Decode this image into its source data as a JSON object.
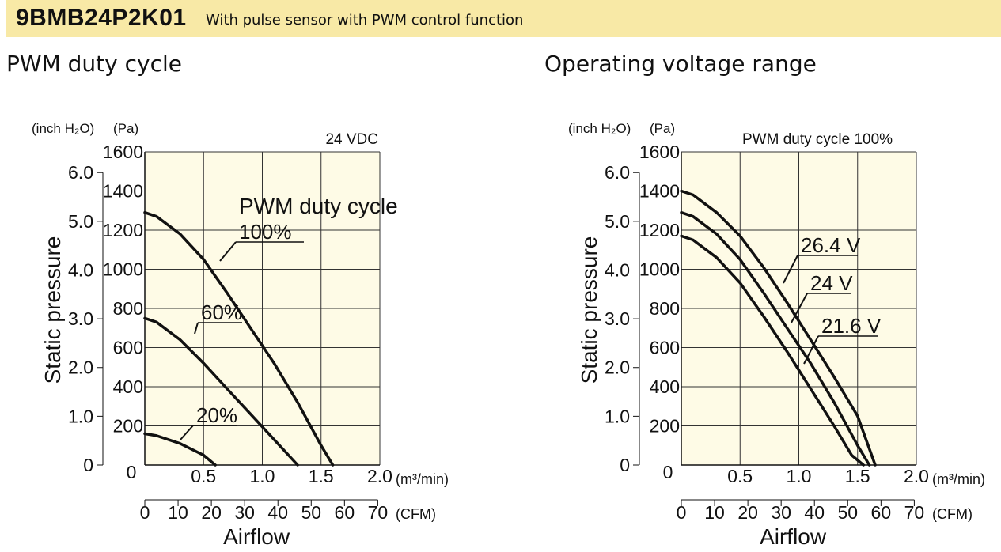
{
  "header": {
    "model": "9BMB24P2K01",
    "description": "With pulse sensor with PWM control function",
    "background": "#f8e9a6"
  },
  "sections": {
    "left_title": "PWM duty cycle",
    "right_title": "Operating voltage range"
  },
  "colors": {
    "plot_bg": "#fefbe6",
    "grid": "#333333",
    "curve": "#111111"
  },
  "chart_data": [
    {
      "type": "line",
      "title": "",
      "condition": "24 VDC",
      "legend_title": "PWM duty cycle",
      "xlabel": "Airflow",
      "ylabel": "Static pressure",
      "x_unit_primary": "(m³/min)",
      "x_unit_secondary": "(CFM)",
      "y_unit_primary": "(Pa)",
      "y_unit_secondary": "(inch H₂O)",
      "xlim": [
        0,
        2.0
      ],
      "ylim": [
        0,
        1600
      ],
      "x_ticks": [
        "0.5",
        "1.0",
        "1.5",
        "2.0"
      ],
      "x_origin_label": "0",
      "y_ticks": [
        "200",
        "400",
        "600",
        "800",
        "1000",
        "1200",
        "1400",
        "1600"
      ],
      "y_origin_label": "0",
      "cfm_ticks": [
        "0",
        "10",
        "20",
        "30",
        "40",
        "50",
        "60",
        "70"
      ],
      "inch_ticks": [
        "0",
        "1.0",
        "2.0",
        "3.0",
        "4.0",
        "5.0",
        "6.0"
      ],
      "grid": true,
      "series": [
        {
          "name": "100%",
          "x": [
            0,
            0.1,
            0.3,
            0.5,
            0.7,
            0.9,
            1.1,
            1.3,
            1.5,
            1.6
          ],
          "y": [
            1290,
            1270,
            1180,
            1050,
            880,
            700,
            520,
            320,
            100,
            0
          ]
        },
        {
          "name": "60%",
          "x": [
            0,
            0.1,
            0.3,
            0.5,
            0.7,
            0.9,
            1.1,
            1.3
          ],
          "y": [
            750,
            730,
            640,
            520,
            390,
            260,
            130,
            0
          ]
        },
        {
          "name": "20%",
          "x": [
            0,
            0.1,
            0.3,
            0.5,
            0.6
          ],
          "y": [
            160,
            150,
            110,
            50,
            0
          ]
        }
      ]
    },
    {
      "type": "line",
      "title": "",
      "condition": "PWM duty cycle 100%",
      "xlabel": "Airflow",
      "ylabel": "Static pressure",
      "x_unit_primary": "(m³/min)",
      "x_unit_secondary": "(CFM)",
      "y_unit_primary": "(Pa)",
      "y_unit_secondary": "(inch H₂O)",
      "xlim": [
        0,
        2.0
      ],
      "ylim": [
        0,
        1600
      ],
      "x_ticks": [
        "0.5",
        "1.0",
        "1.5",
        "2.0"
      ],
      "x_origin_label": "0",
      "y_ticks": [
        "200",
        "400",
        "600",
        "800",
        "1000",
        "1200",
        "1400",
        "1600"
      ],
      "y_origin_label": "0",
      "cfm_ticks": [
        "0",
        "10",
        "20",
        "30",
        "40",
        "50",
        "60",
        "70"
      ],
      "inch_ticks": [
        "0",
        "1.0",
        "2.0",
        "3.0",
        "4.0",
        "5.0",
        "6.0"
      ],
      "grid": true,
      "series": [
        {
          "name": "26.4 V",
          "x": [
            0,
            0.1,
            0.3,
            0.5,
            0.7,
            0.9,
            1.1,
            1.3,
            1.5,
            1.65
          ],
          "y": [
            1400,
            1380,
            1290,
            1170,
            1010,
            830,
            640,
            450,
            250,
            0
          ]
        },
        {
          "name": "24 V",
          "x": [
            0,
            0.1,
            0.3,
            0.5,
            0.7,
            0.9,
            1.1,
            1.3,
            1.5,
            1.6
          ],
          "y": [
            1290,
            1270,
            1180,
            1050,
            880,
            700,
            520,
            320,
            100,
            0
          ]
        },
        {
          "name": "21.6 V",
          "x": [
            0,
            0.1,
            0.3,
            0.5,
            0.7,
            0.9,
            1.1,
            1.3,
            1.45,
            1.55
          ],
          "y": [
            1170,
            1150,
            1060,
            930,
            760,
            580,
            390,
            200,
            50,
            0
          ]
        }
      ]
    }
  ]
}
